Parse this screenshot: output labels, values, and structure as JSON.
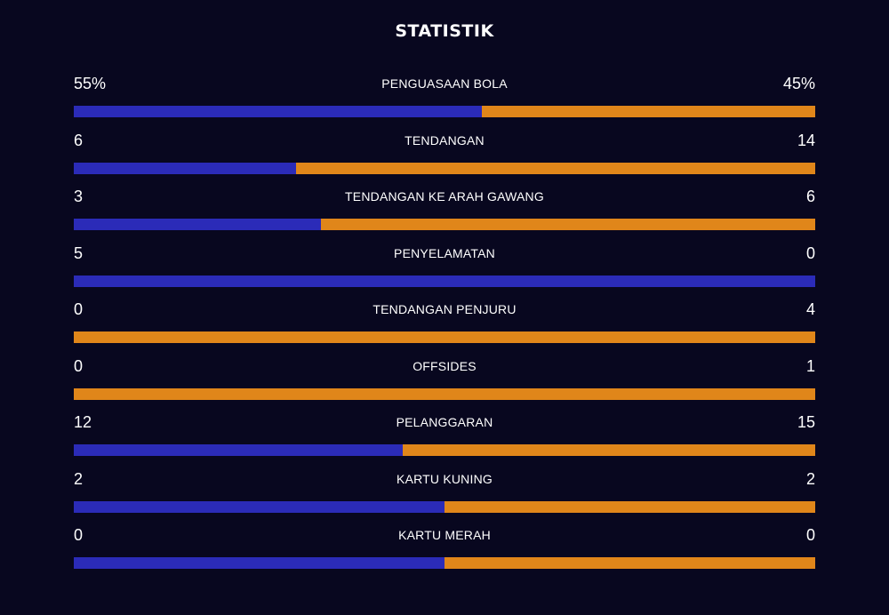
{
  "header": {
    "title": "STATISTIK"
  },
  "colors": {
    "background": "#08071f",
    "home": "#2b2bb8",
    "away": "#e0861a",
    "text": "#ffffff"
  },
  "stats": [
    {
      "label": "PENGUASAAN BOLA",
      "home": "55%",
      "away": "45%",
      "home_share": 0.55
    },
    {
      "label": "TENDANGAN",
      "home": "6",
      "away": "14",
      "home_share": 0.3
    },
    {
      "label": "TENDANGAN KE ARAH GAWANG",
      "home": "3",
      "away": "6",
      "home_share": 0.333
    },
    {
      "label": "PENYELAMATAN",
      "home": "5",
      "away": "0",
      "home_share": 1.0
    },
    {
      "label": "TENDANGAN PENJURU",
      "home": "0",
      "away": "4",
      "home_share": 0.0
    },
    {
      "label": "OFFSIDES",
      "home": "0",
      "away": "1",
      "home_share": 0.0
    },
    {
      "label": "PELANGGARAN",
      "home": "12",
      "away": "15",
      "home_share": 0.444
    },
    {
      "label": "KARTU KUNING",
      "home": "2",
      "away": "2",
      "home_share": 0.5
    },
    {
      "label": "KARTU MERAH",
      "home": "0",
      "away": "0",
      "home_share": 0.5
    }
  ]
}
